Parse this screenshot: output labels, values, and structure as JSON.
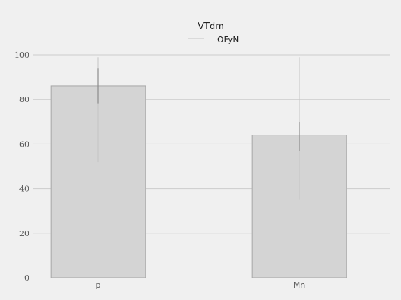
{
  "chart_data": {
    "type": "bar",
    "categories": [
      "p",
      "Mn"
    ],
    "values": [
      86,
      64
    ],
    "error_bars": [
      {
        "outer": [
          52,
          99
        ],
        "inner": [
          78,
          94
        ]
      },
      {
        "outer": [
          35,
          99
        ],
        "inner": [
          57,
          70
        ]
      }
    ],
    "ylim": [
      0,
      100
    ],
    "yticks": [
      0,
      20,
      40,
      60,
      80,
      100
    ],
    "grid": true,
    "legend": {
      "title": "VTdm",
      "entries": [
        "OFyN"
      ],
      "placement": "top-center"
    },
    "colors": {
      "background": "#f0f0f0",
      "bar_fill": "#d4d4d4",
      "bar_edge": "#a6a6a6",
      "grid": "#cbcbcb",
      "error_outer": "#c4c4c4",
      "error_inner": "#8c8c8c"
    }
  }
}
